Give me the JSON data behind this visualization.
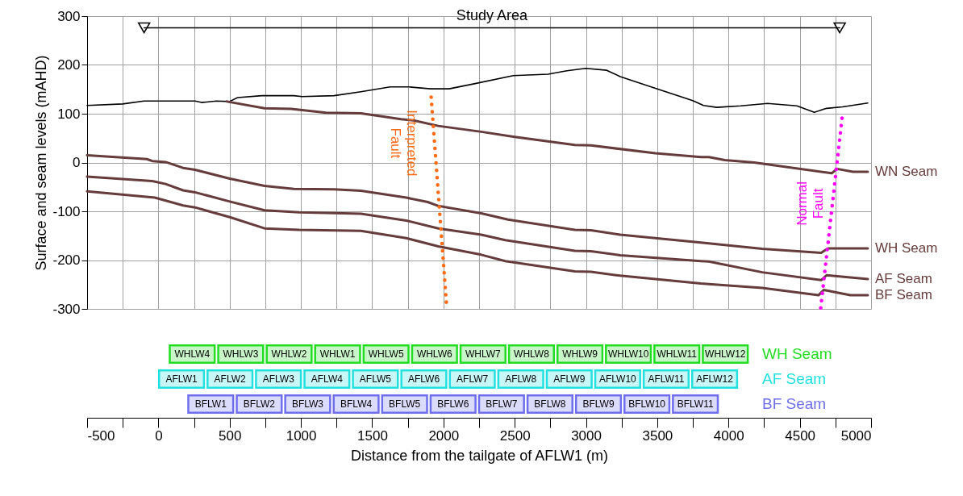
{
  "chart_data": [
    {
      "type": "line",
      "ylabel": "Surface and seam levels (mAHD)",
      "xlim": [
        -500,
        5000
      ],
      "ylim": [
        -300,
        300
      ],
      "xticks": [
        -500,
        -250,
        0,
        250,
        500,
        750,
        1000,
        1250,
        1500,
        1750,
        2000,
        2250,
        2500,
        2750,
        3000,
        3250,
        3500,
        3750,
        4000,
        4250,
        4500,
        4750,
        5000
      ],
      "yticks": [
        -300,
        -200,
        -100,
        0,
        100,
        200,
        300
      ],
      "grid": true,
      "tick_labels": "y",
      "line_style": "solid",
      "annotations": [
        {
          "text": "Study Area",
          "x": 2340,
          "y": 283
        }
      ],
      "series": [
        {
          "type": "line",
          "color": "#000000",
          "marker": "triangle",
          "x": [
            -100,
            4780
          ],
          "values": [
            276,
            276
          ]
        },
        {
          "color": "#000000",
          "x": [
            -500,
            -250,
            -100,
            257,
            303,
            407,
            499,
            556,
            726,
            951,
            1007,
            1232,
            1421,
            1626,
            1757,
            1909,
            2040,
            2209,
            2490,
            2734,
            2866,
            2998,
            3146,
            3240,
            3487,
            3749,
            3824,
            3917,
            4086,
            4274,
            4480,
            4602,
            4688,
            4800,
            4977
          ],
          "values": [
            117,
            120,
            126,
            126,
            123,
            126,
            125,
            133,
            137,
            137,
            135,
            137,
            145,
            155,
            155,
            151,
            151,
            161,
            178,
            181,
            188,
            193,
            189,
            176,
            152,
            127,
            117,
            113,
            116,
            121,
            116,
            103,
            111,
            114,
            122
          ]
        },
        {
          "name": "WN Seam",
          "color": "#663b3b",
          "x": [
            480,
            745,
            932,
            1176,
            1421,
            1702,
            1796,
            1964,
            2265,
            2490,
            2922,
            3035,
            3487,
            3806,
            3862,
            3974,
            4180,
            4724,
            4761,
            4873,
            4977
          ],
          "values": [
            125,
            111,
            110,
            102,
            101,
            89,
            86,
            75,
            63,
            53,
            36,
            35,
            19,
            11,
            11,
            5,
            0,
            -22,
            -13,
            -19,
            -19
          ]
        },
        {
          "name": "WH Seam",
          "color": "#663b3b",
          "x": [
            -500,
            -81,
            -43,
            51,
            173,
            257,
            501,
            745,
            951,
            1232,
            1421,
            1739,
            1890,
            1964,
            2265,
            2453,
            2922,
            3035,
            3240,
            3806,
            4237,
            4650,
            4697,
            4977
          ],
          "values": [
            15,
            7,
            3,
            1,
            -11,
            -15,
            -33,
            -48,
            -54,
            -55,
            -58,
            -72,
            -81,
            -89,
            -104,
            -117,
            -138,
            -139,
            -148,
            -164,
            -177,
            -185,
            -176,
            -176
          ]
        },
        {
          "name": "AF Seam",
          "color": "#663b3b",
          "x": [
            -500,
            -43,
            51,
            173,
            257,
            501,
            745,
            988,
            1421,
            1739,
            1964,
            2265,
            2434,
            2922,
            3035,
            3240,
            3806,
            3862,
            4237,
            4650,
            4688,
            4977
          ],
          "values": [
            -29,
            -38,
            -44,
            -57,
            -61,
            -80,
            -98,
            -102,
            -105,
            -119,
            -135,
            -148,
            -159,
            -181,
            -182,
            -190,
            -202,
            -203,
            -225,
            -241,
            -231,
            -239
          ]
        },
        {
          "name": "BF Seam",
          "color": "#663b3b",
          "x": [
            -500,
            -25,
            173,
            257,
            501,
            745,
            988,
            1421,
            1739,
            1964,
            2265,
            2434,
            2922,
            3035,
            3240,
            3806,
            3862,
            4237,
            4631,
            4669,
            4855,
            4977
          ],
          "values": [
            -59,
            -72,
            -88,
            -92,
            -112,
            -135,
            -138,
            -140,
            -155,
            -172,
            -189,
            -202,
            -223,
            -224,
            -232,
            -248,
            -249,
            -257,
            -272,
            -261,
            -272,
            -272
          ]
        },
        {
          "name": "Interpreted\nFault",
          "color": "#ff6a13",
          "line_style": "dotted",
          "x": [
            1914,
            2021
          ],
          "values": [
            134,
            -289
          ]
        },
        {
          "name": "Normal\nFault",
          "color": "#ff00ff",
          "line_style": "dotted",
          "x": [
            4800,
            4647
          ],
          "values": [
            100,
            -298
          ]
        }
      ]
    },
    {
      "type": "bar",
      "orientation": "horizontal",
      "xlabel": "Distance from the tailgate of AFLW1 (m)",
      "xlim": [
        -500,
        5000
      ],
      "xticks": [
        -500,
        {
          "value": -250,
          "label": null
        },
        0,
        {
          "value": 250,
          "label": null
        },
        500,
        {
          "value": 750,
          "label": null
        },
        1000,
        {
          "value": 1250,
          "label": null
        },
        1500,
        {
          "value": 1750,
          "label": null
        },
        2000,
        {
          "value": 2250,
          "label": null
        },
        2500,
        {
          "value": 2750,
          "label": null
        },
        3000,
        {
          "value": 3250,
          "label": null
        },
        3500,
        {
          "value": 3750,
          "label": null
        },
        4000,
        {
          "value": 4250,
          "label": null
        },
        4500,
        {
          "value": 4750,
          "label": null
        },
        5000
      ],
      "categories": [
        "WH Seam",
        "AF Seam",
        "BF Seam"
      ],
      "series": [
        {
          "colors": [
            "#22dd22",
            "#22e0e0",
            "#6f6fee"
          ],
          "base": [
            80,
            5,
            210
          ],
          "values": [
            315,
            315,
            315
          ],
          "value_labels": [
            "WHLW4",
            "AFLW1",
            "BFLW1"
          ]
        },
        {
          "colors": [
            "#22dd22",
            "#22e0e0",
            "#6f6fee"
          ],
          "base": [
            420,
            345,
            550
          ],
          "values": [
            315,
            315,
            315
          ],
          "value_labels": [
            "WHLW3",
            "AFLW2",
            "BFLW2"
          ]
        },
        {
          "colors": [
            "#22dd22",
            "#22e0e0",
            "#6f6fee"
          ],
          "base": [
            760,
            685,
            890
          ],
          "values": [
            315,
            315,
            315
          ],
          "value_labels": [
            "WHLW2",
            "AFLW3",
            "BFLW3"
          ]
        },
        {
          "colors": [
            "#22dd22",
            "#22e0e0",
            "#6f6fee"
          ],
          "base": [
            1100,
            1025,
            1230
          ],
          "values": [
            315,
            315,
            315
          ],
          "value_labels": [
            "WHLW1",
            "AFLW4",
            "BFLW4"
          ]
        },
        {
          "colors": [
            "#22dd22",
            "#22e0e0",
            "#6f6fee"
          ],
          "base": [
            1440,
            1365,
            1570
          ],
          "values": [
            315,
            315,
            315
          ],
          "value_labels": [
            "WHLW5",
            "AFLW5",
            "BFLW5"
          ]
        },
        {
          "colors": [
            "#22dd22",
            "#22e0e0",
            "#6f6fee"
          ],
          "base": [
            1780,
            1705,
            1910
          ],
          "values": [
            315,
            315,
            315
          ],
          "value_labels": [
            "WHLW6",
            "AFLW6",
            "BFLW6"
          ]
        },
        {
          "colors": [
            "#22dd22",
            "#22e0e0",
            "#6f6fee"
          ],
          "base": [
            2120,
            2045,
            2250
          ],
          "values": [
            315,
            315,
            315
          ],
          "value_labels": [
            "WHLW7",
            "AFLW7",
            "BFLW7"
          ]
        },
        {
          "colors": [
            "#22dd22",
            "#22e0e0",
            "#6f6fee"
          ],
          "base": [
            2460,
            2385,
            2590
          ],
          "values": [
            315,
            315,
            315
          ],
          "value_labels": [
            "WHLW8",
            "AFLW8",
            "BFLW8"
          ]
        },
        {
          "colors": [
            "#22dd22",
            "#22e0e0",
            "#6f6fee"
          ],
          "base": [
            2800,
            2725,
            2930
          ],
          "values": [
            315,
            315,
            315
          ],
          "value_labels": [
            "WHLW9",
            "AFLW9",
            "BFLW9"
          ]
        },
        {
          "colors": [
            "#22dd22",
            "#22e0e0",
            "#6f6fee"
          ],
          "base": [
            3140,
            3065,
            3270
          ],
          "values": [
            315,
            315,
            315
          ],
          "value_labels": [
            "WHLW10",
            "AFLW10",
            "BFLW10"
          ]
        },
        {
          "colors": [
            "#22dd22",
            "#22e0e0",
            "#6f6fee"
          ],
          "base": [
            3480,
            3405,
            3610
          ],
          "values": [
            315,
            315,
            315
          ],
          "value_labels": [
            "WHLW11",
            "AFLW11",
            "BFLW11"
          ]
        },
        {
          "colors": [
            "#22dd22",
            "#22e0e0",
            null
          ],
          "base": [
            3820,
            3745,
            null
          ],
          "values": [
            315,
            315,
            null
          ],
          "value_labels": [
            "WHLW12",
            "AFLW12",
            null
          ]
        }
      ]
    }
  ]
}
